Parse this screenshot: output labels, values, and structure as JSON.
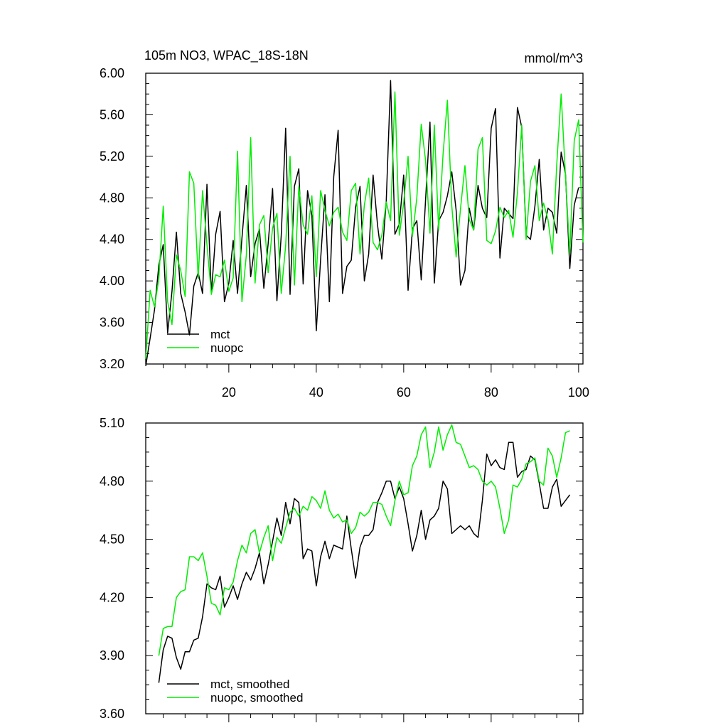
{
  "chart_data": [
    {
      "type": "line",
      "title": "105m NO3, WPAC_18S-18N",
      "units": "mmol/m^3",
      "xlim": [
        1,
        101
      ],
      "ylim": [
        3.2,
        6.0
      ],
      "xticks": [
        20,
        40,
        60,
        80,
        100
      ],
      "xtick_labels": [
        "20",
        "40",
        "60",
        "80",
        "100"
      ],
      "yticks": [
        3.2,
        3.6,
        4.0,
        4.4,
        4.8,
        5.2,
        5.6,
        6.0
      ],
      "ytick_labels": [
        "3.20",
        "3.60",
        "4.00",
        "4.40",
        "4.80",
        "5.20",
        "5.60",
        "6.00"
      ],
      "legend": {
        "location": "bottom-left"
      },
      "series": [
        {
          "name": "mct",
          "color": "#000000",
          "x_start": 1,
          "values": [
            3.18,
            3.45,
            3.72,
            4.15,
            4.35,
            3.5,
            3.9,
            4.47,
            3.88,
            3.7,
            3.48,
            3.95,
            4.08,
            3.88,
            4.93,
            3.88,
            4.45,
            4.67,
            3.8,
            3.98,
            4.39,
            3.88,
            4.41,
            4.92,
            4.04,
            4.36,
            4.5,
            3.93,
            4.36,
            4.89,
            3.81,
            4.44,
            5.47,
            3.87,
            4.91,
            5.08,
            3.97,
            4.87,
            4.63,
            3.52,
            4.21,
            4.83,
            3.8,
            5.0,
            5.45,
            3.88,
            4.14,
            4.2,
            4.71,
            4.91,
            4.0,
            4.26,
            5.02,
            4.54,
            4.21,
            4.77,
            5.93,
            4.45,
            4.55,
            5.02,
            3.91,
            4.5,
            4.58,
            4.01,
            4.78,
            5.53,
            3.98,
            4.58,
            4.66,
            4.82,
            5.05,
            4.68,
            3.96,
            4.1,
            4.7,
            4.49,
            4.92,
            4.7,
            4.61,
            5.47,
            5.66,
            4.22,
            4.7,
            4.65,
            4.6,
            5.67,
            5.48,
            4.44,
            4.4,
            4.72,
            5.17,
            4.49,
            4.7,
            4.66,
            4.46,
            5.24,
            5.03,
            4.12,
            4.73,
            4.9
          ]
        },
        {
          "name": "nuopc",
          "color": "#00ee00",
          "x_start": 1,
          "values": [
            3.25,
            3.91,
            3.75,
            4.02,
            4.72,
            3.8,
            3.58,
            4.25,
            4.1,
            3.85,
            5.05,
            4.94,
            4.02,
            4.87,
            4.35,
            3.87,
            4.06,
            4.04,
            4.2,
            3.9,
            4.03,
            5.25,
            3.8,
            4.25,
            5.38,
            3.98,
            4.54,
            4.63,
            4.08,
            4.51,
            4.65,
            3.88,
            4.34,
            5.2,
            3.96,
            4.91,
            4.54,
            4.45,
            4.82,
            4.04,
            4.87,
            4.68,
            4.53,
            4.66,
            4.71,
            4.47,
            4.39,
            4.87,
            4.94,
            4.26,
            4.73,
            4.99,
            4.37,
            4.3,
            4.44,
            4.76,
            4.58,
            5.82,
            4.44,
            4.75,
            5.2,
            4.43,
            4.8,
            5.51,
            5.16,
            4.46,
            5.5,
            4.49,
            5.22,
            5.74,
            4.72,
            4.23,
            4.7,
            5.11,
            4.59,
            4.49,
            5.27,
            5.38,
            4.39,
            4.36,
            4.48,
            4.71,
            4.61,
            4.68,
            4.42,
            4.85,
            5.5,
            4.4,
            4.96,
            5.11,
            4.58,
            4.75,
            4.59,
            4.26,
            5.12,
            5.8,
            5.01,
            4.26,
            5.35,
            5.55,
            4.37
          ]
        }
      ]
    },
    {
      "type": "line",
      "title": "",
      "xlim": [
        1,
        101
      ],
      "ylim": [
        3.6,
        5.1
      ],
      "xticks": [
        20,
        40,
        60,
        80,
        100
      ],
      "yticks": [
        3.6,
        3.9,
        4.2,
        4.5,
        4.8,
        5.1
      ],
      "ytick_labels": [
        "3.60",
        "3.90",
        "4.20",
        "4.50",
        "4.80",
        "5.10"
      ],
      "legend": {
        "location": "bottom-left"
      },
      "series": [
        {
          "name": "mct, smoothed",
          "color": "#000000",
          "x_start": 4,
          "values": [
            3.76,
            3.93,
            4.0,
            3.99,
            3.89,
            3.83,
            3.92,
            3.92,
            3.98,
            3.99,
            4.1,
            4.27,
            4.25,
            4.24,
            4.31,
            4.15,
            4.2,
            4.26,
            4.19,
            4.27,
            4.33,
            4.29,
            4.35,
            4.43,
            4.27,
            4.37,
            4.49,
            4.61,
            4.52,
            4.69,
            4.58,
            4.71,
            4.69,
            4.4,
            4.45,
            4.44,
            4.26,
            4.41,
            4.49,
            4.4,
            4.47,
            4.46,
            4.45,
            4.62,
            4.45,
            4.3,
            4.46,
            4.52,
            4.52,
            4.55,
            4.69,
            4.74,
            4.8,
            4.8,
            4.71,
            4.77,
            4.71,
            4.58,
            4.44,
            4.52,
            4.65,
            4.5,
            4.6,
            4.62,
            4.66,
            4.8,
            4.76,
            4.53,
            4.55,
            4.57,
            4.55,
            4.57,
            4.53,
            4.51,
            4.7,
            4.94,
            4.88,
            4.91,
            4.87,
            4.86,
            5.0,
            5.0,
            4.82,
            4.85,
            4.86,
            4.93,
            4.91,
            4.79,
            4.66,
            4.66,
            4.77,
            4.81,
            4.67,
            4.7,
            4.73
          ]
        },
        {
          "name": "nuopc, smoothed",
          "color": "#00ee00",
          "x_start": 4,
          "values": [
            3.9,
            4.04,
            4.05,
            4.05,
            4.2,
            4.23,
            4.24,
            4.41,
            4.41,
            4.39,
            4.43,
            4.31,
            4.17,
            4.16,
            4.11,
            4.25,
            4.24,
            4.28,
            4.39,
            4.47,
            4.43,
            4.53,
            4.55,
            4.43,
            4.51,
            4.57,
            4.39,
            4.51,
            4.48,
            4.56,
            4.64,
            4.66,
            4.62,
            4.67,
            4.65,
            4.72,
            4.7,
            4.66,
            4.75,
            4.65,
            4.61,
            4.63,
            4.59,
            4.6,
            4.53,
            4.56,
            4.64,
            4.62,
            4.64,
            4.69,
            4.69,
            4.68,
            4.62,
            4.57,
            4.7,
            4.8,
            4.73,
            4.74,
            4.88,
            4.93,
            5.04,
            5.08,
            4.87,
            4.95,
            5.08,
            4.96,
            5.04,
            5.09,
            5.0,
            4.99,
            4.93,
            4.87,
            4.88,
            4.86,
            4.8,
            4.78,
            4.8,
            4.77,
            4.66,
            4.53,
            4.6,
            4.78,
            4.77,
            4.81,
            4.89,
            4.9,
            4.92,
            4.8,
            4.78,
            4.97,
            4.93,
            4.82,
            4.92,
            5.05,
            5.06
          ]
        }
      ]
    }
  ]
}
